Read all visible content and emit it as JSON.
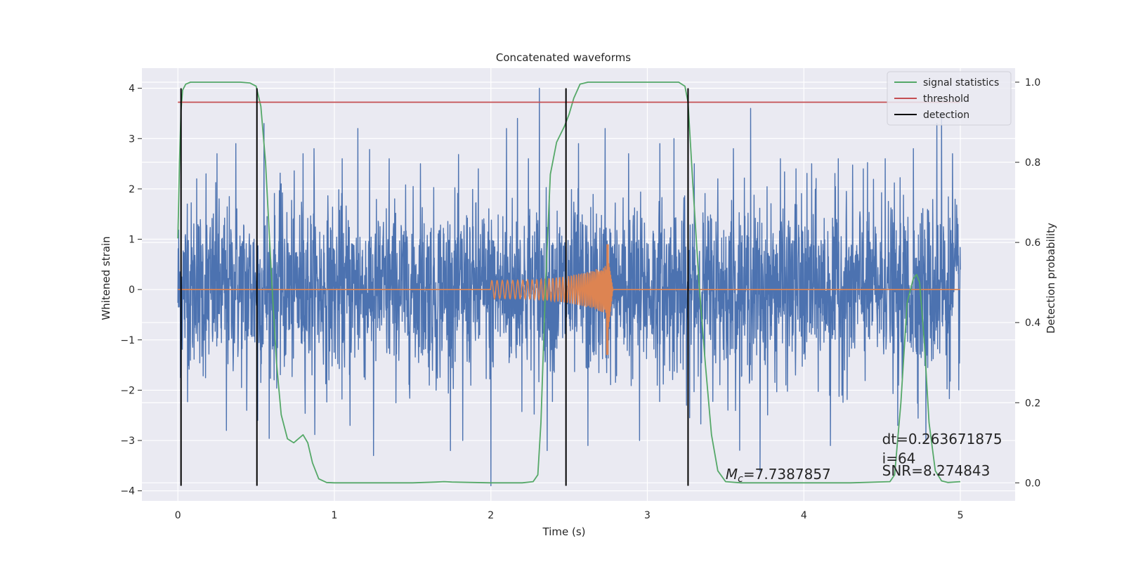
{
  "chart_data": {
    "type": "line",
    "title": "Concatenated waveforms",
    "xlabel": "Time (s)",
    "ylabel": "Whitened strain",
    "ylabel_right": "Detection probability",
    "xlim": [
      -0.23,
      5.35
    ],
    "ylim": [
      -4.2,
      4.4
    ],
    "ylim_right": [
      -0.045,
      1.035
    ],
    "x_ticks": [
      0,
      1,
      2,
      3,
      4,
      5
    ],
    "y_ticks": [
      -4,
      -3,
      -2,
      -1,
      0,
      1,
      2,
      3,
      4
    ],
    "y_ticks_right": [
      0.0,
      0.2,
      0.4,
      0.6,
      0.8,
      1.0
    ],
    "x_tick_labels": [
      "0",
      "1",
      "2",
      "3",
      "4",
      "5"
    ],
    "y_tick_labels": [
      "−4",
      "−3",
      "−2",
      "−1",
      "0",
      "1",
      "2",
      "3",
      "4"
    ],
    "y_tick_labels_right": [
      "0.0",
      "0.2",
      "0.4",
      "0.6",
      "0.8",
      "1.0"
    ],
    "grid": true,
    "background": "#eaeaf2",
    "noise": {
      "color": "#4c72b0",
      "x_range": [
        0,
        5
      ],
      "typical_amplitude": 1.0,
      "spikes": [
        [
          0.02,
          -2.5
        ],
        [
          0.06,
          1.7
        ],
        [
          0.12,
          2.2
        ],
        [
          0.18,
          2.3
        ],
        [
          0.25,
          2.7
        ],
        [
          0.31,
          -2.8
        ],
        [
          0.37,
          2.9
        ],
        [
          0.44,
          -2.4
        ],
        [
          0.51,
          -2.6
        ],
        [
          0.55,
          3.3
        ],
        [
          0.66,
          2.1
        ],
        [
          0.8,
          2.7
        ],
        [
          0.87,
          2.8
        ],
        [
          1.05,
          2.6
        ],
        [
          1.1,
          -2.7
        ],
        [
          1.15,
          3.2
        ],
        [
          1.25,
          -3.3
        ],
        [
          1.35,
          2.6
        ],
        [
          1.55,
          2.5
        ],
        [
          1.65,
          -2.0
        ],
        [
          1.82,
          -3.0
        ],
        [
          1.92,
          2.4
        ],
        [
          2.0,
          -3.9
        ],
        [
          2.1,
          3.2
        ],
        [
          2.17,
          3.4
        ],
        [
          2.24,
          2.6
        ],
        [
          2.31,
          4.0
        ],
        [
          2.36,
          -3.2
        ],
        [
          2.56,
          2.9
        ],
        [
          2.62,
          -3.1
        ],
        [
          2.73,
          3.2
        ],
        [
          2.88,
          2.7
        ],
        [
          2.95,
          -3.0
        ],
        [
          3.08,
          2.9
        ],
        [
          3.17,
          3.0
        ],
        [
          3.25,
          -2.3
        ],
        [
          3.3,
          2.5
        ],
        [
          3.45,
          2.2
        ],
        [
          3.55,
          2.8
        ],
        [
          3.66,
          3.6
        ],
        [
          3.72,
          -3.6
        ],
        [
          3.85,
          2.6
        ],
        [
          3.95,
          2.4
        ],
        [
          4.05,
          2.5
        ],
        [
          4.17,
          -3.1
        ],
        [
          4.22,
          2.6
        ],
        [
          4.38,
          2.4
        ],
        [
          4.52,
          2.6
        ],
        [
          4.6,
          -2.7
        ],
        [
          4.7,
          2.8
        ],
        [
          4.78,
          -3.0
        ],
        [
          4.85,
          3.3
        ],
        [
          4.88,
          3.5
        ],
        [
          4.95,
          2.7
        ]
      ]
    },
    "waveform": {
      "color": "#dd8452",
      "chirp_start": 2.0,
      "chirp_peak": 2.75,
      "start_amplitude": 0.18,
      "peak_amplitude_pos": 0.9,
      "peak_amplitude_neg": -1.3
    },
    "series": [
      {
        "name": "signal statistics",
        "color": "#55a868",
        "axis": "right",
        "x": [
          0.0,
          0.01,
          0.02,
          0.03,
          0.05,
          0.08,
          0.12,
          0.2,
          0.3,
          0.4,
          0.46,
          0.5,
          0.53,
          0.56,
          0.6,
          0.63,
          0.66,
          0.7,
          0.74,
          0.77,
          0.8,
          0.83,
          0.86,
          0.9,
          0.95,
          1.0,
          1.5,
          1.65,
          1.7,
          1.75,
          2.0,
          2.2,
          2.27,
          2.3,
          2.32,
          2.35,
          2.38,
          2.42,
          2.47,
          2.5,
          2.53,
          2.57,
          2.62,
          2.8,
          3.0,
          3.2,
          3.24,
          3.26,
          3.29,
          3.33,
          3.37,
          3.41,
          3.45,
          3.5,
          3.6,
          4.0,
          4.3,
          4.55,
          4.58,
          4.62,
          4.66,
          4.7,
          4.72,
          4.74,
          4.77,
          4.8,
          4.84,
          4.88,
          4.92,
          5.0
        ],
        "y": [
          0.61,
          0.8,
          0.93,
          0.98,
          0.995,
          1.0,
          1.0,
          1.0,
          1.0,
          1.0,
          0.998,
          0.99,
          0.94,
          0.8,
          0.5,
          0.3,
          0.17,
          0.11,
          0.1,
          0.11,
          0.12,
          0.1,
          0.05,
          0.01,
          0.001,
          0.0,
          0.0,
          0.002,
          0.003,
          0.002,
          0.0,
          0.0,
          0.003,
          0.02,
          0.15,
          0.5,
          0.77,
          0.85,
          0.89,
          0.92,
          0.96,
          0.995,
          1.0,
          1.0,
          1.0,
          1.0,
          0.99,
          0.95,
          0.75,
          0.5,
          0.3,
          0.12,
          0.03,
          0.003,
          0.0,
          0.0,
          0.0,
          0.003,
          0.02,
          0.2,
          0.45,
          0.51,
          0.52,
          0.5,
          0.35,
          0.15,
          0.03,
          0.005,
          0.001,
          0.003
        ]
      },
      {
        "name": "threshold",
        "color": "#c44e52",
        "axis": "right",
        "x": [
          0.0,
          5.0
        ],
        "y": [
          0.95,
          0.95
        ]
      },
      {
        "name": "detection",
        "color": "#000000",
        "axis": "left",
        "x_positions": [
          0.02,
          0.505,
          2.48,
          3.26
        ],
        "y_range": [
          -3.9,
          4.0
        ]
      }
    ],
    "legend": {
      "placement": "upper-right",
      "entries": [
        "signal statistics",
        "threshold",
        "detection"
      ]
    },
    "annotations": [
      {
        "id": "mc",
        "prefix": "M",
        "subscript": "c",
        "text": "=7.7387857",
        "x": 3.5,
        "y": -3.77
      },
      {
        "id": "dt",
        "text": "dt=0.263671875",
        "x": 4.5,
        "y": -3.07
      },
      {
        "id": "i",
        "text": " i=64",
        "x": 4.5,
        "y": -3.45
      },
      {
        "id": "snr",
        "text": "SNR=8.274843",
        "x": 4.5,
        "y": -3.7
      }
    ]
  }
}
